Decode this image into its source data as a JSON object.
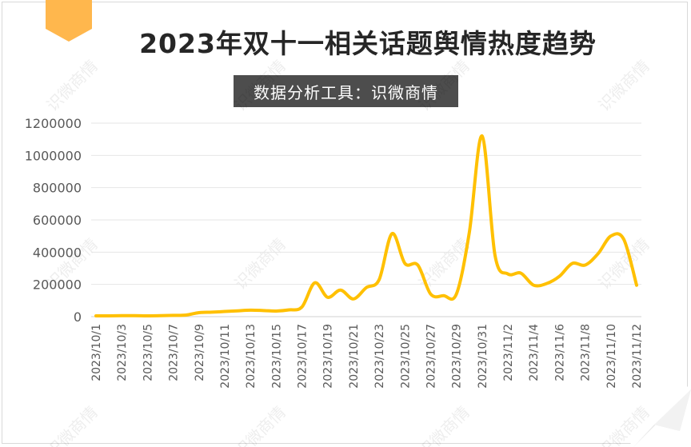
{
  "title": "2023年双十一相关话题舆情热度趋势",
  "subtitle": "数据分析工具：识微商情",
  "watermark": "识微商情",
  "colors": {
    "line": "#ffc000",
    "badge": "#ffb74d",
    "grid": "#e6e6e6",
    "subtitle_bg": "#4d4d4d"
  },
  "chart_data": {
    "type": "line",
    "title": "2023年双十一相关话题舆情热度趋势",
    "xlabel": "",
    "ylabel": "",
    "ylim": [
      0,
      1200000
    ],
    "yticks": [
      "0",
      "200000",
      "400000",
      "600000",
      "800000",
      "1000000",
      "1200000"
    ],
    "grid": true,
    "x": [
      "2023/10/1",
      "2023/10/2",
      "2023/10/3",
      "2023/10/4",
      "2023/10/5",
      "2023/10/6",
      "2023/10/7",
      "2023/10/8",
      "2023/10/9",
      "2023/10/10",
      "2023/10/11",
      "2023/10/12",
      "2023/10/13",
      "2023/10/14",
      "2023/10/15",
      "2023/10/16",
      "2023/10/17",
      "2023/10/18",
      "2023/10/19",
      "2023/10/20",
      "2023/10/21",
      "2023/10/22",
      "2023/10/23",
      "2023/10/24",
      "2023/10/25",
      "2023/10/26",
      "2023/10/27",
      "2023/10/28",
      "2023/10/29",
      "2023/10/30",
      "2023/10/31",
      "2023/11/1",
      "2023/11/2",
      "2023/11/3",
      "2023/11/4",
      "2023/11/5",
      "2023/11/6",
      "2023/11/7",
      "2023/11/8",
      "2023/11/9",
      "2023/11/10",
      "2023/11/11",
      "2023/11/12"
    ],
    "xtick_labels": [
      "2023/10/1",
      "2023/10/3",
      "2023/10/5",
      "2023/10/7",
      "2023/10/9",
      "2023/10/11",
      "2023/10/13",
      "2023/10/15",
      "2023/10/17",
      "2023/10/19",
      "2023/10/21",
      "2023/10/23",
      "2023/10/25",
      "2023/10/27",
      "2023/10/29",
      "2023/10/31",
      "2023/11/2",
      "2023/11/4",
      "2023/11/6",
      "2023/11/8",
      "2023/11/10",
      "2023/11/12"
    ],
    "series": [
      {
        "values": [
          5000,
          5000,
          6000,
          6000,
          5000,
          6000,
          8000,
          10000,
          25000,
          28000,
          32000,
          36000,
          40000,
          38000,
          35000,
          42000,
          60000,
          210000,
          120000,
          165000,
          110000,
          180000,
          230000,
          515000,
          330000,
          320000,
          140000,
          130000,
          140000,
          520000,
          1120000,
          380000,
          265000,
          270000,
          195000,
          205000,
          250000,
          330000,
          320000,
          390000,
          500000,
          480000,
          195000
        ]
      }
    ]
  }
}
